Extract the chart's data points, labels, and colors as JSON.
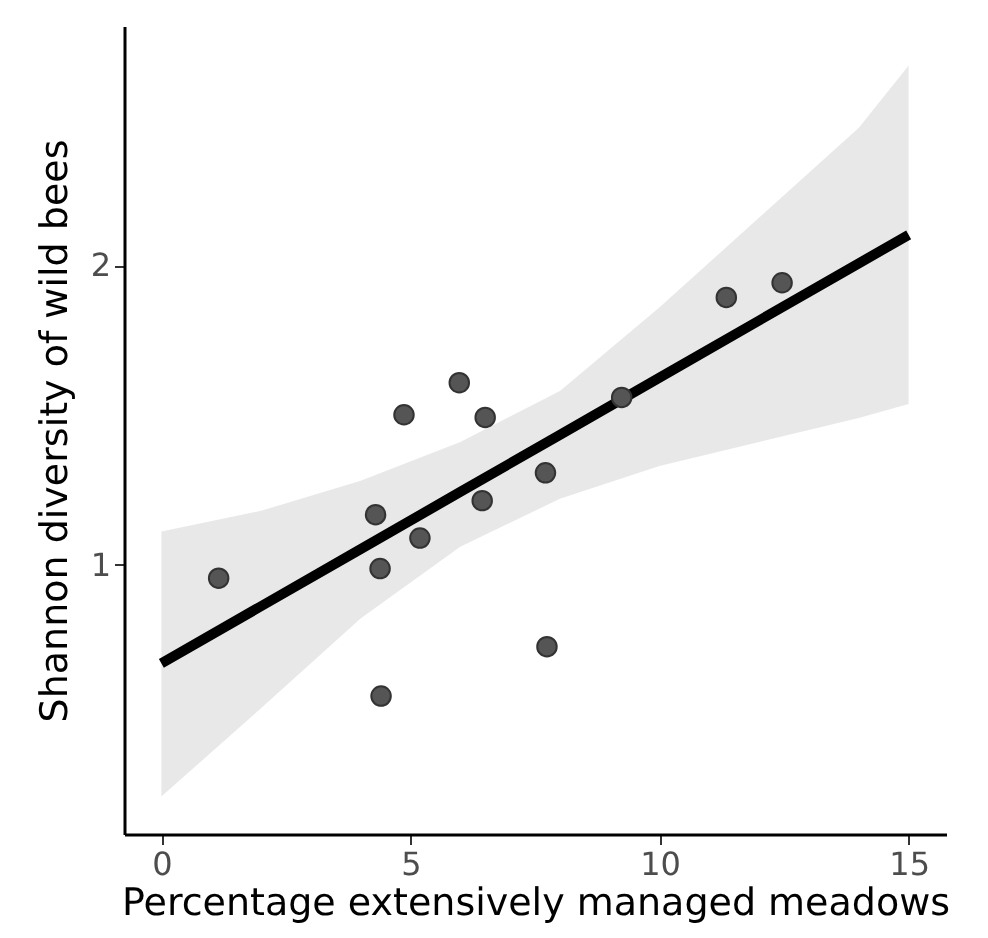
{
  "chart_data": {
    "type": "scatter",
    "xlabel": "Percentage extensively managed meadows",
    "ylabel": "Shannon diversity of wild bees",
    "xlim": [
      -0.75,
      15.75
    ],
    "ylim": [
      0.1,
      2.8
    ],
    "xticks": [
      0,
      5,
      10,
      15
    ],
    "yticks": [
      1,
      2
    ],
    "series": [
      {
        "marker": "circle",
        "color": "#555555",
        "x": [
          1.15,
          4.3,
          4.39,
          4.41,
          4.87,
          5.19,
          5.98,
          6.5,
          6.44,
          7.71,
          7.74,
          9.24,
          11.34,
          12.46
        ],
        "values": [
          0.955,
          1.167,
          0.987,
          0.561,
          1.501,
          1.089,
          1.608,
          1.492,
          1.214,
          1.307,
          0.726,
          1.559,
          1.893,
          1.942
        ]
      },
      {
        "type": "line",
        "color": "#000000",
        "x": [
          0,
          2,
          4,
          6,
          8,
          10,
          12,
          14,
          15
        ],
        "values": [
          0.67,
          0.861,
          1.052,
          1.243,
          1.434,
          1.625,
          1.816,
          2.007,
          2.102
        ],
        "lower": [
          0.225,
          0.52,
          0.82,
          1.06,
          1.22,
          1.33,
          1.41,
          1.49,
          1.537
        ],
        "upper": [
          1.111,
          1.18,
          1.28,
          1.41,
          1.58,
          1.86,
          2.16,
          2.46,
          2.668
        ]
      }
    ]
  }
}
